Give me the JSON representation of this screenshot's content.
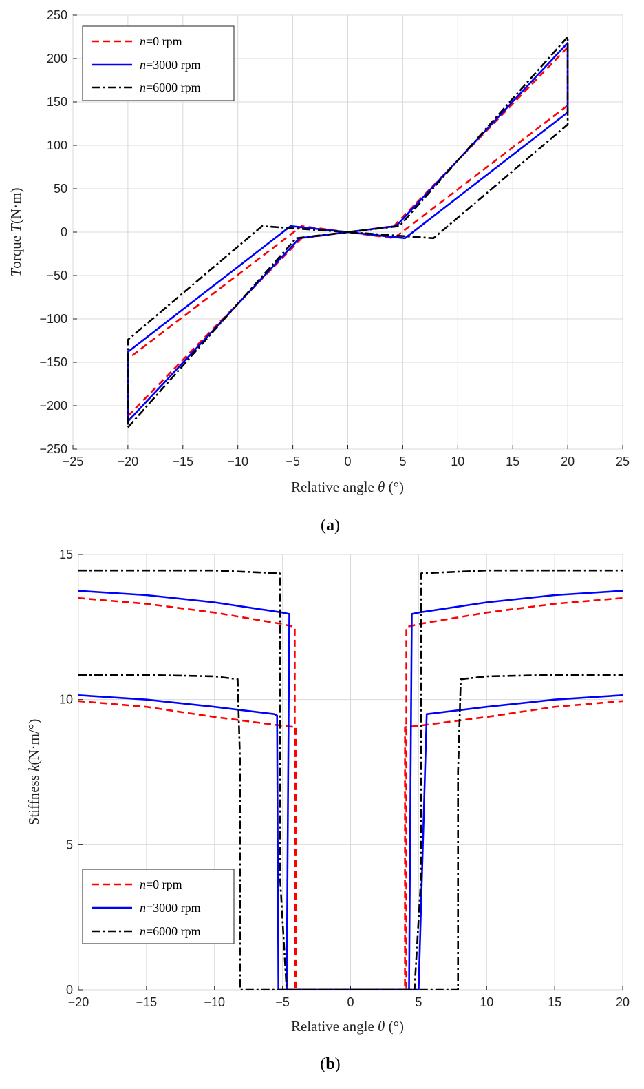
{
  "chart_data": [
    {
      "type": "line",
      "caption": "(a)",
      "xlabel": "Relative angle θ (°)",
      "ylabel": "Torque T(N·m)",
      "xlim": [
        -25,
        25
      ],
      "ylim": [
        -250,
        250
      ],
      "xticks": [
        -25,
        -20,
        -15,
        -10,
        -5,
        0,
        5,
        10,
        15,
        20,
        25
      ],
      "yticks": [
        -250,
        -200,
        -150,
        -100,
        -50,
        0,
        50,
        100,
        150,
        200,
        250
      ],
      "xtick_labels": [
        "−25",
        "−20",
        "−15",
        "−10",
        "−5",
        "0",
        "5",
        "10",
        "15",
        "20",
        "25"
      ],
      "ytick_labels": [
        "−250",
        "−200",
        "−150",
        "−100",
        "−50",
        "0",
        "50",
        "100",
        "150",
        "200",
        "250"
      ],
      "grid": true,
      "legend": "top-left",
      "series": [
        {
          "name": "n=0 rpm",
          "name_italic": "n",
          "name_rest": "=0 rpm",
          "color": "#ff0000",
          "style": "dashed",
          "x": [
            -20,
            -4.2,
            4.2,
            20,
            20,
            4.2,
            -4.2,
            -20,
            -20
          ],
          "y": [
            -212,
            -7,
            7,
            213,
            146,
            -7,
            7,
            -146,
            -212
          ]
        },
        {
          "name": "n=3000 rpm",
          "name_italic": "n",
          "name_rest": "=3000 rpm",
          "color": "#0000ff",
          "style": "solid",
          "x": [
            -20,
            -4.4,
            4.4,
            20,
            20,
            5.2,
            -5.2,
            -20,
            -20
          ],
          "y": [
            -218,
            -7,
            7,
            218,
            138,
            -7,
            7,
            -138,
            -218
          ]
        },
        {
          "name": "n=6000 rpm",
          "name_italic": "n",
          "name_rest": "=6000 rpm",
          "color": "#000000",
          "style": "dashdot",
          "x": [
            -20,
            -4.7,
            4.7,
            20,
            20,
            7.8,
            -7.8,
            -20,
            -20
          ],
          "y": [
            -225,
            -7,
            7,
            225,
            124,
            -7,
            7,
            -124,
            -225
          ]
        }
      ]
    },
    {
      "type": "line",
      "caption": "(b)",
      "xlabel": "Relative angle θ (°)",
      "ylabel": "Stiffness k(N·m/°)",
      "xlim": [
        -20,
        20
      ],
      "ylim": [
        0,
        15
      ],
      "xticks": [
        -20,
        -15,
        -10,
        -5,
        0,
        5,
        10,
        15,
        20
      ],
      "yticks": [
        0,
        5,
        10,
        15
      ],
      "xtick_labels": [
        "−20",
        "−15",
        "−10",
        "−5",
        "0",
        "5",
        "10",
        "15",
        "20"
      ],
      "ytick_labels": [
        "0",
        "5",
        "10",
        "15"
      ],
      "grid": true,
      "legend": "bottom-left",
      "series": [
        {
          "name": "n=0 rpm",
          "name_italic": "n",
          "name_rest": "=0 rpm",
          "color": "#ff0000",
          "style": "dashed",
          "upper": {
            "x": [
              -20,
              -15,
              -10,
              -5,
              -4.1,
              -4.1,
              -3.9,
              -3.9,
              3.9,
              3.9,
              4.1,
              4.1,
              5,
              10,
              15,
              20
            ],
            "y": [
              13.5,
              13.3,
              13.0,
              12.6,
              12.5,
              0,
              0,
              0,
              0,
              0,
              0,
              12.5,
              12.6,
              13.0,
              13.3,
              13.5
            ]
          },
          "lower": {
            "x": [
              -20,
              -15,
              -10,
              -5,
              -4.0,
              -4.0,
              4.0,
              4.0,
              5,
              10,
              15,
              20
            ],
            "y": [
              9.95,
              9.75,
              9.4,
              9.1,
              9.05,
              0,
              0,
              9.05,
              9.1,
              9.4,
              9.75,
              9.95
            ]
          }
        },
        {
          "name": "n=3000 rpm",
          "name_italic": "n",
          "name_rest": "=3000 rpm",
          "color": "#0000ff",
          "style": "solid",
          "upper": {
            "x": [
              -20,
              -15,
              -10,
              -5,
              -4.5,
              -4.7,
              -4.7,
              4.3,
              4.3,
              4.5,
              5,
              10,
              15,
              20
            ],
            "y": [
              13.75,
              13.6,
              13.35,
              13.0,
              12.95,
              0,
              0,
              0,
              0,
              12.95,
              13.0,
              13.35,
              13.6,
              13.75
            ]
          },
          "lower": {
            "x": [
              -20,
              -15,
              -10,
              -5.6,
              -5.4,
              -5.3,
              5.0,
              5.0,
              5.6,
              10,
              15,
              20
            ],
            "y": [
              10.15,
              10.0,
              9.75,
              9.5,
              9.45,
              0,
              0,
              0,
              9.5,
              9.75,
              10.0,
              10.15
            ]
          }
        },
        {
          "name": "n=6000 rpm",
          "name_italic": "n",
          "name_rest": "=6000 rpm",
          "color": "#000000",
          "style": "dashdot",
          "upper": {
            "x": [
              -20,
              -15,
              -10,
              -5.2,
              -5.2,
              -4.7,
              4.7,
              5.2,
              5.2,
              10,
              15,
              20
            ],
            "y": [
              14.45,
              14.45,
              14.45,
              14.35,
              4.0,
              0,
              0,
              4.0,
              14.35,
              14.45,
              14.45,
              14.45
            ]
          },
          "lower": {
            "x": [
              -20,
              -15,
              -10,
              -8.3,
              -8.1,
              -8.1,
              7.9,
              7.9,
              8.1,
              10,
              15,
              20
            ],
            "y": [
              10.85,
              10.85,
              10.8,
              10.7,
              7.5,
              0,
              0,
              7.5,
              10.7,
              10.8,
              10.85,
              10.85
            ]
          }
        }
      ]
    }
  ]
}
